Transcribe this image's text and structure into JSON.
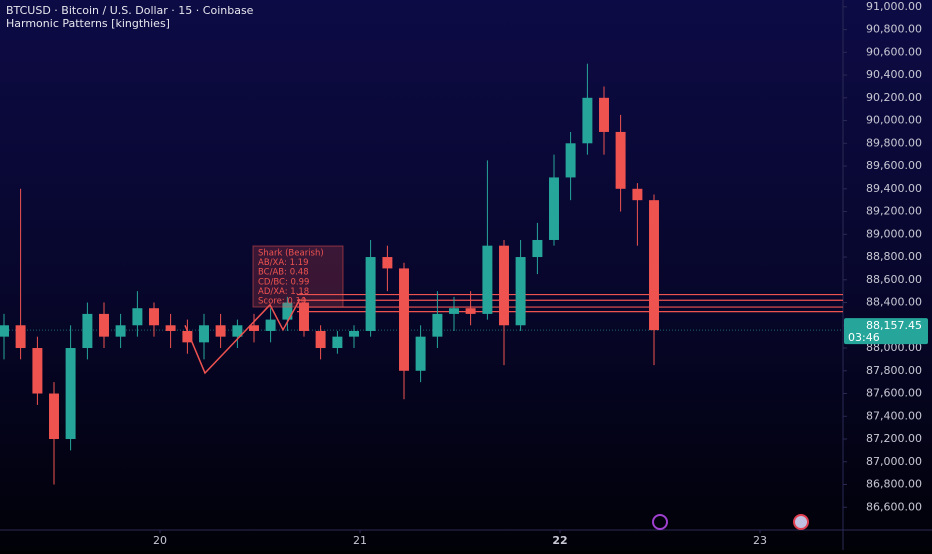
{
  "chart_data": {
    "type": "candlestick",
    "title": "BTCUSD · Bitcoin / U.S. Dollar · 15 · Coinbase",
    "subtitle": "Harmonic Patterns [kingthies]",
    "x": [
      19.22,
      19.303,
      19.387,
      19.47,
      19.553,
      19.637,
      19.72,
      19.803,
      19.887,
      19.97,
      20.053,
      20.137,
      20.22,
      20.303,
      20.387,
      20.47,
      20.553,
      20.637,
      20.72,
      20.803,
      20.887,
      20.97,
      21.053,
      21.137,
      21.22,
      21.303,
      21.387,
      21.47,
      21.553,
      21.637,
      21.72,
      21.803,
      21.887,
      21.97,
      22.053,
      22.137,
      22.22,
      22.303,
      22.387,
      22.47
    ],
    "open": [
      88100,
      88200,
      88000,
      87600,
      87200,
      88000,
      88300,
      88100,
      88200,
      88350,
      88200,
      88150,
      88050,
      88200,
      88100,
      88200,
      88150,
      88250,
      88400,
      88150,
      88000,
      88100,
      88150,
      88800,
      88700,
      87800,
      88100,
      88300,
      88350,
      88300,
      88900,
      88200,
      88800,
      88950,
      89500,
      89800,
      90200,
      89900,
      89400,
      89300
    ],
    "high": [
      88300,
      89400,
      88100,
      87700,
      88200,
      88400,
      88400,
      88300,
      88500,
      88400,
      88300,
      88250,
      88300,
      88300,
      88250,
      88300,
      88350,
      88450,
      88450,
      88200,
      88150,
      88200,
      88950,
      88900,
      88750,
      88200,
      88500,
      88450,
      88500,
      89650,
      88950,
      88950,
      89100,
      89700,
      89900,
      90500,
      90300,
      90050,
      89450,
      89350
    ],
    "low": [
      87900,
      87900,
      87500,
      86800,
      87100,
      87900,
      88000,
      88000,
      88100,
      88100,
      88000,
      87950,
      87900,
      88000,
      88000,
      88050,
      88050,
      88150,
      88100,
      87900,
      87950,
      88000,
      88100,
      88500,
      87550,
      87700,
      88000,
      88150,
      88200,
      88250,
      87850,
      88150,
      88650,
      88900,
      89300,
      89700,
      89700,
      89200,
      88900,
      87850
    ],
    "close": [
      88200,
      88000,
      87600,
      87200,
      88000,
      88300,
      88100,
      88200,
      88350,
      88200,
      88150,
      88050,
      88200,
      88100,
      88200,
      88150,
      88250,
      88400,
      88150,
      88000,
      88100,
      88150,
      88800,
      88700,
      87800,
      88100,
      88300,
      88350,
      88300,
      88900,
      88200,
      88800,
      88950,
      89500,
      89800,
      90200,
      89900,
      89400,
      89300,
      88157.45
    ],
    "up_color": "#26a69a",
    "down_color": "#ef5350",
    "xlim": [
      19.2,
      23.415
    ],
    "xticks": [
      20,
      21,
      22,
      23
    ],
    "ylim": [
      86400,
      91060
    ],
    "yticks": [
      {
        "value": 86600,
        "label": "86,600.00"
      },
      {
        "value": 86800,
        "label": "86,800.00"
      },
      {
        "value": 87000,
        "label": "87,000.00"
      },
      {
        "value": 87200,
        "label": "87,200.00"
      },
      {
        "value": 87400,
        "label": "87,400.00"
      },
      {
        "value": 87600,
        "label": "87,600.00"
      },
      {
        "value": 87800,
        "label": "87,800.00"
      },
      {
        "value": 88000,
        "label": "88,000.00"
      },
      {
        "value": 88200,
        "label": "88,200.00"
      },
      {
        "value": 88400,
        "label": "88,400.00"
      },
      {
        "value": 88600,
        "label": "88,600.00"
      },
      {
        "value": 88800,
        "label": "88,800.00"
      },
      {
        "value": 89000,
        "label": "89,000.00"
      },
      {
        "value": 89200,
        "label": "89,200.00"
      },
      {
        "value": 89400,
        "label": "89,400.00"
      },
      {
        "value": 89600,
        "label": "89,600.00"
      },
      {
        "value": 89800,
        "label": "89,800.00"
      },
      {
        "value": 90000,
        "label": "90,000.00"
      },
      {
        "value": 90200,
        "label": "90,200.00"
      },
      {
        "value": 90400,
        "label": "90,400.00"
      },
      {
        "value": 90600,
        "label": "90,600.00"
      },
      {
        "value": 90800,
        "label": "90,800.00"
      },
      {
        "value": 91000,
        "label": "91,000.00"
      }
    ],
    "last_price": {
      "value": 88157.45,
      "label": "88,157.45"
    },
    "countdown": "03:46",
    "pattern": {
      "name": "Shark (Bearish)",
      "lines": [
        "AB/XA: 1.19",
        "BC/AB: 0.48",
        "CD/BC: 0.99",
        "AD/XA: 1.18",
        "Score: 0.10"
      ],
      "x": [
        20.125,
        20.225,
        20.55,
        20.615,
        20.7
      ],
      "y": [
        88200,
        87780,
        88380,
        88160,
        88430
      ],
      "color": "#ef5350"
    },
    "levels": {
      "start": 20.685,
      "values": [
        88470,
        88420,
        88360,
        88320
      ]
    }
  }
}
